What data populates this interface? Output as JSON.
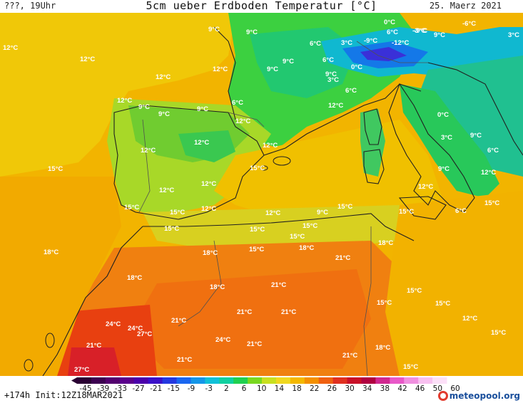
{
  "header": {
    "left": "???, 19Uhr",
    "title": "5cm ueber Erdboden Temperatur [°C]",
    "date": "25. Maerz 2021"
  },
  "footer": {
    "run_info": "+174h Init:12Z18MAR2021",
    "logo_text": "meteopool.org"
  },
  "legend": {
    "ticks": [
      "-45",
      "-39",
      "-33",
      "-27",
      "-21",
      "-15",
      "-9",
      "-3",
      "2",
      "6",
      "10",
      "14",
      "18",
      "22",
      "26",
      "30",
      "34",
      "38",
      "42",
      "46",
      "50",
      "60"
    ],
    "colors": [
      "#2a0033",
      "#3c0050",
      "#52006e",
      "#5a008c",
      "#4a00aa",
      "#3a10c8",
      "#2438e0",
      "#1a66f0",
      "#1496e8",
      "#10c0d8",
      "#10d0a0",
      "#20d050",
      "#7ad820",
      "#c8e020",
      "#f0d820",
      "#f4b800",
      "#f49000",
      "#f06010",
      "#e03020",
      "#c81028",
      "#b00040",
      "#d02890",
      "#e858c8",
      "#f090e0",
      "#f8c0f0",
      "#fce0f8"
    ]
  },
  "map_labels": {
    "temps": [
      "12°C",
      "12°C",
      "12°C",
      "12°C",
      "9°C",
      "9°C",
      "9°C",
      "9°C",
      "6°C",
      "6°C",
      "3°C",
      "0°C",
      "6°C",
      "-3°C",
      "-6°C",
      "9°C",
      "3°C",
      "9°C",
      "-9°C",
      "-12°C",
      "-9°C",
      "3°C",
      "6°C",
      "0°C",
      "12°C",
      "9°C",
      "9°C",
      "9°C",
      "6°C",
      "12°C",
      "12°C",
      "12°C",
      "12°C",
      "15°C",
      "15°C",
      "15°C",
      "15°C",
      "12°C",
      "12°C",
      "12°C",
      "12°C",
      "12°C",
      "9°C",
      "15°C",
      "15°C",
      "15°C",
      "15°C",
      "15°C",
      "15°C",
      "18°C",
      "18°C",
      "18°C",
      "18°C",
      "21°C",
      "21°C",
      "21°C",
      "21°C",
      "21°C",
      "24°C",
      "24°C",
      "27°C",
      "21°C",
      "24°C",
      "21°C",
      "21°C",
      "27°C",
      "18°C",
      "18°C",
      "21°C",
      "15°C",
      "15°C",
      "15°C",
      "12°C",
      "6°C",
      "0°C",
      "3°C",
      "9°C",
      "12°C",
      "9°C",
      "6°C",
      "12°C",
      "15°C",
      "18°C",
      "15°C",
      "15°C",
      "15°C"
    ]
  }
}
